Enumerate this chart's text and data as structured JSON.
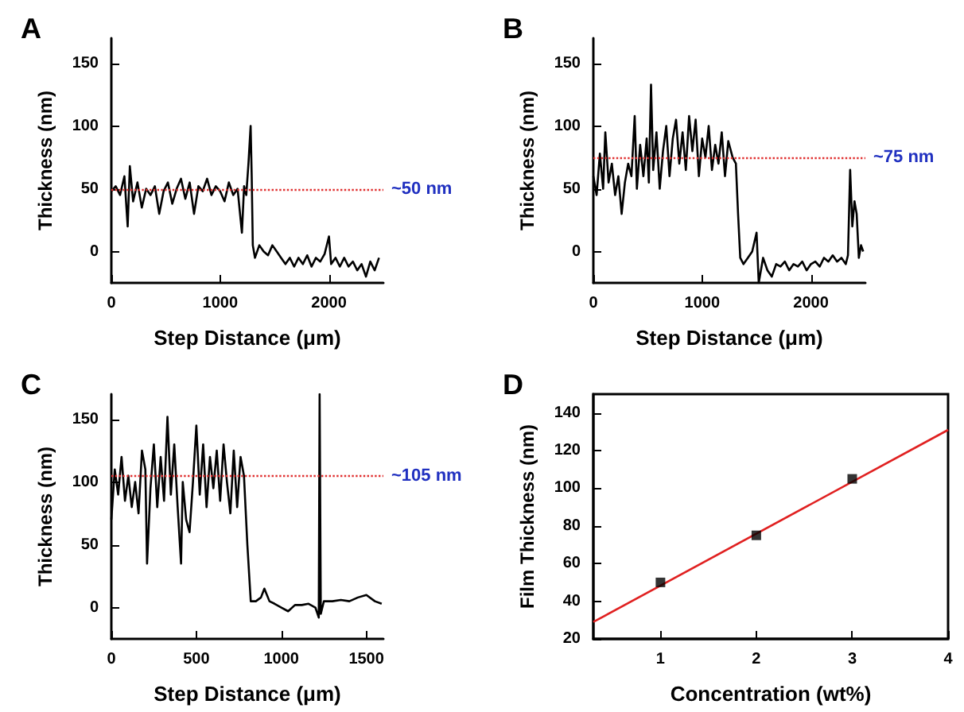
{
  "chart_data": [
    {
      "type": "line",
      "title": "A",
      "xlabel": "Step Distance (μm)",
      "ylabel": "Thickness (nm)",
      "xlim": [
        0,
        2500
      ],
      "ylim": [
        -25,
        170
      ],
      "xticks": [
        0,
        1000,
        2000
      ],
      "yticks": [
        0,
        50,
        100,
        150
      ],
      "marker": "none",
      "line_style": "solid",
      "x": [
        0,
        40,
        80,
        120,
        150,
        170,
        200,
        240,
        280,
        320,
        360,
        400,
        440,
        480,
        520,
        560,
        600,
        640,
        680,
        720,
        760,
        800,
        840,
        880,
        920,
        960,
        1000,
        1040,
        1080,
        1120,
        1160,
        1200,
        1220,
        1240,
        1260,
        1280,
        1290,
        1300,
        1320,
        1360,
        1400,
        1440,
        1480,
        1520,
        1560,
        1600,
        1640,
        1680,
        1720,
        1760,
        1800,
        1840,
        1880,
        1920,
        1960,
        2000,
        2020,
        2060,
        2100,
        2140,
        2180,
        2220,
        2260,
        2300,
        2340,
        2380,
        2420,
        2460
      ],
      "series": [
        {
          "color": "#000000",
          "values": [
            48,
            52,
            45,
            60,
            20,
            68,
            40,
            55,
            35,
            50,
            45,
            52,
            30,
            48,
            55,
            38,
            50,
            58,
            42,
            55,
            30,
            52,
            48,
            58,
            45,
            52,
            48,
            40,
            55,
            45,
            50,
            15,
            52,
            45,
            70,
            100,
            60,
            5,
            -5,
            5,
            0,
            -3,
            5,
            0,
            -5,
            -10,
            -5,
            -12,
            -5,
            -10,
            -3,
            -12,
            -5,
            -8,
            -2,
            12,
            -10,
            -5,
            -12,
            -5,
            -12,
            -8,
            -15,
            -10,
            -20,
            -8,
            -15,
            -5
          ]
        }
      ],
      "ref_lines": [
        {
          "axis": "y",
          "value": 50,
          "label": "~50 nm",
          "color": "#e03030",
          "line_style": "dotted"
        }
      ]
    },
    {
      "type": "line",
      "title": "B",
      "xlabel": "Step Distance (μm)",
      "ylabel": "Thickness (nm)",
      "xlim": [
        0,
        2500
      ],
      "ylim": [
        -25,
        170
      ],
      "xticks": [
        0,
        1000,
        2000
      ],
      "yticks": [
        0,
        50,
        100,
        150
      ],
      "marker": "none",
      "line_style": "solid",
      "x": [
        0,
        30,
        60,
        90,
        110,
        140,
        170,
        200,
        230,
        260,
        290,
        320,
        350,
        380,
        400,
        430,
        460,
        490,
        510,
        530,
        550,
        580,
        610,
        640,
        670,
        700,
        730,
        760,
        790,
        820,
        850,
        880,
        910,
        940,
        970,
        1000,
        1030,
        1060,
        1090,
        1120,
        1150,
        1180,
        1210,
        1240,
        1280,
        1310,
        1330,
        1350,
        1380,
        1420,
        1460,
        1500,
        1520,
        1560,
        1600,
        1640,
        1680,
        1720,
        1760,
        1800,
        1840,
        1880,
        1920,
        1960,
        2000,
        2040,
        2080,
        2120,
        2160,
        2200,
        2240,
        2280,
        2320,
        2340,
        2360,
        2380,
        2400,
        2420,
        2440,
        2460,
        2480
      ],
      "series": [
        {
          "color": "#000000",
          "values": [
            60,
            45,
            78,
            50,
            95,
            55,
            70,
            45,
            60,
            30,
            55,
            70,
            60,
            108,
            50,
            85,
            60,
            90,
            55,
            133,
            65,
            95,
            50,
            80,
            100,
            60,
            90,
            105,
            70,
            95,
            65,
            108,
            80,
            105,
            60,
            90,
            75,
            100,
            65,
            85,
            70,
            95,
            60,
            88,
            75,
            70,
            30,
            -5,
            -10,
            -5,
            0,
            15,
            -25,
            -5,
            -15,
            -20,
            -10,
            -12,
            -8,
            -15,
            -10,
            -12,
            -8,
            -15,
            -10,
            -8,
            -12,
            -5,
            -8,
            -3,
            -8,
            -5,
            -10,
            -3,
            65,
            20,
            40,
            30,
            -5,
            5,
            0
          ]
        }
      ],
      "ref_lines": [
        {
          "axis": "y",
          "value": 75,
          "label": "~75 nm",
          "color": "#e03030",
          "line_style": "dotted"
        }
      ]
    },
    {
      "type": "line",
      "title": "C",
      "xlabel": "Step Distance (μm)",
      "ylabel": "Thickness (nm)",
      "xlim": [
        0,
        1600
      ],
      "ylim": [
        -25,
        170
      ],
      "xticks": [
        0,
        500,
        1000,
        1500
      ],
      "yticks": [
        0,
        50,
        100,
        150
      ],
      "marker": "none",
      "line_style": "solid",
      "x": [
        0,
        20,
        40,
        60,
        80,
        100,
        120,
        140,
        160,
        180,
        200,
        210,
        230,
        250,
        270,
        290,
        310,
        330,
        350,
        370,
        390,
        410,
        420,
        440,
        460,
        480,
        500,
        520,
        540,
        560,
        580,
        600,
        620,
        640,
        660,
        680,
        700,
        720,
        740,
        760,
        780,
        800,
        820,
        850,
        880,
        900,
        930,
        960,
        1000,
        1040,
        1080,
        1120,
        1160,
        1200,
        1220,
        1225,
        1232,
        1250,
        1300,
        1350,
        1400,
        1450,
        1500,
        1550,
        1590
      ],
      "series": [
        {
          "color": "#000000",
          "values": [
            70,
            110,
            90,
            120,
            85,
            105,
            80,
            100,
            75,
            125,
            110,
            35,
            95,
            130,
            80,
            120,
            85,
            152,
            90,
            130,
            80,
            35,
            100,
            70,
            60,
            100,
            145,
            90,
            130,
            80,
            120,
            95,
            125,
            85,
            130,
            100,
            75,
            125,
            80,
            120,
            105,
            50,
            5,
            5,
            8,
            15,
            5,
            3,
            0,
            -3,
            2,
            2,
            3,
            0,
            -8,
            170,
            -5,
            5,
            5,
            6,
            5,
            8,
            10,
            5,
            3
          ]
        }
      ],
      "ref_lines": [
        {
          "axis": "y",
          "value": 105,
          "label": "~105 nm",
          "color": "#e03030",
          "line_style": "dotted"
        }
      ]
    },
    {
      "type": "scatter",
      "title": "D",
      "xlabel": "Concentration (wt%)",
      "ylabel": "Film Thickness (nm)",
      "xlim": [
        0.3,
        4
      ],
      "ylim": [
        20,
        150
      ],
      "xticks": [
        1,
        2,
        3,
        4
      ],
      "yticks": [
        20,
        40,
        60,
        80,
        100,
        120,
        140
      ],
      "series": [
        {
          "type": "scatter",
          "color": "#000000",
          "marker": "square",
          "x": [
            1,
            2,
            3
          ],
          "values": [
            50,
            75,
            105
          ]
        },
        {
          "type": "line",
          "color": "#e02020",
          "marker": "none",
          "line_style": "solid",
          "x": [
            0.3,
            4
          ],
          "values": [
            29,
            131
          ]
        }
      ]
    }
  ]
}
